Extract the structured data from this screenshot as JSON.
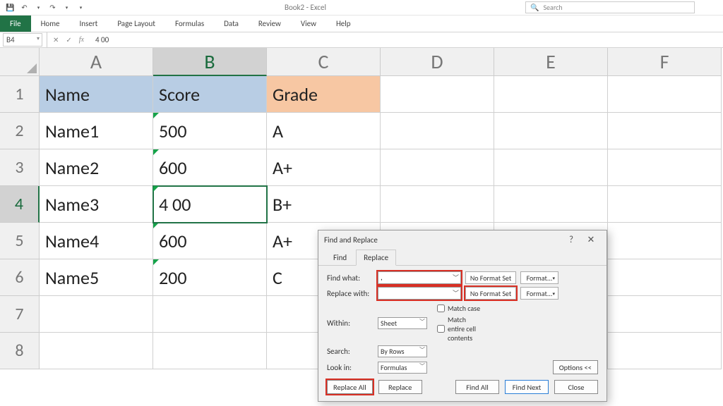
{
  "title": "Book2 - Excel",
  "search_placeholder": "Search",
  "ribbon": {
    "file": "File",
    "tabs": [
      "Home",
      "Insert",
      "Page Layout",
      "Formulas",
      "Data",
      "Review",
      "View",
      "Help"
    ]
  },
  "formula_bar": {
    "name_box": "B4",
    "value": "4 00"
  },
  "col_headers": [
    "A",
    "B",
    "C",
    "D",
    "E",
    "F"
  ],
  "row_count": 8,
  "selected": {
    "row": 4,
    "col": "B"
  },
  "header_colors": {
    "A": "#b8cde4",
    "B": "#b8cde4",
    "C": "#f7c7a3"
  },
  "rows": [
    {
      "A": "Name",
      "B": "Score",
      "C": "Grade",
      "hdr": true
    },
    {
      "A": "Name1",
      "B": "500",
      "C": "A",
      "tri": true
    },
    {
      "A": "Name2",
      "B": "600",
      "C": "A+",
      "tri": true
    },
    {
      "A": "Name3",
      "B": "4 00",
      "C": "B+",
      "tri": true
    },
    {
      "A": "Name4",
      "B": "600",
      "C": "A+",
      "tri": true
    },
    {
      "A": "Name5",
      "B": "200",
      "C": "C",
      "tri": true
    },
    {
      "A": "",
      "B": "",
      "C": ""
    },
    {
      "A": "",
      "B": "",
      "C": ""
    }
  ],
  "dialog": {
    "title": "Find and Replace",
    "tabs": {
      "find": "Find",
      "replace": "Replace",
      "active": "replace"
    },
    "labels": {
      "find_what": "Find what:",
      "replace_with": "Replace with:",
      "within": "Within:",
      "search": "Search:",
      "look_in": "Look in:",
      "match_case": "Match case",
      "match_entire": "Match entire cell contents"
    },
    "values": {
      "find_what": ",",
      "replace_with": "",
      "within": "Sheet",
      "search": "By Rows",
      "look_in": "Formulas"
    },
    "no_format": "No Format Set",
    "format_btn": "Format...",
    "options_btn": "Options <<",
    "buttons": {
      "replace_all": "Replace All",
      "replace": "Replace",
      "find_all": "Find All",
      "find_next": "Find Next",
      "close": "Close"
    },
    "highlighted": [
      "find_what_combo",
      "replace_with_combo",
      "no_format_2",
      "replace_all_btn"
    ]
  }
}
